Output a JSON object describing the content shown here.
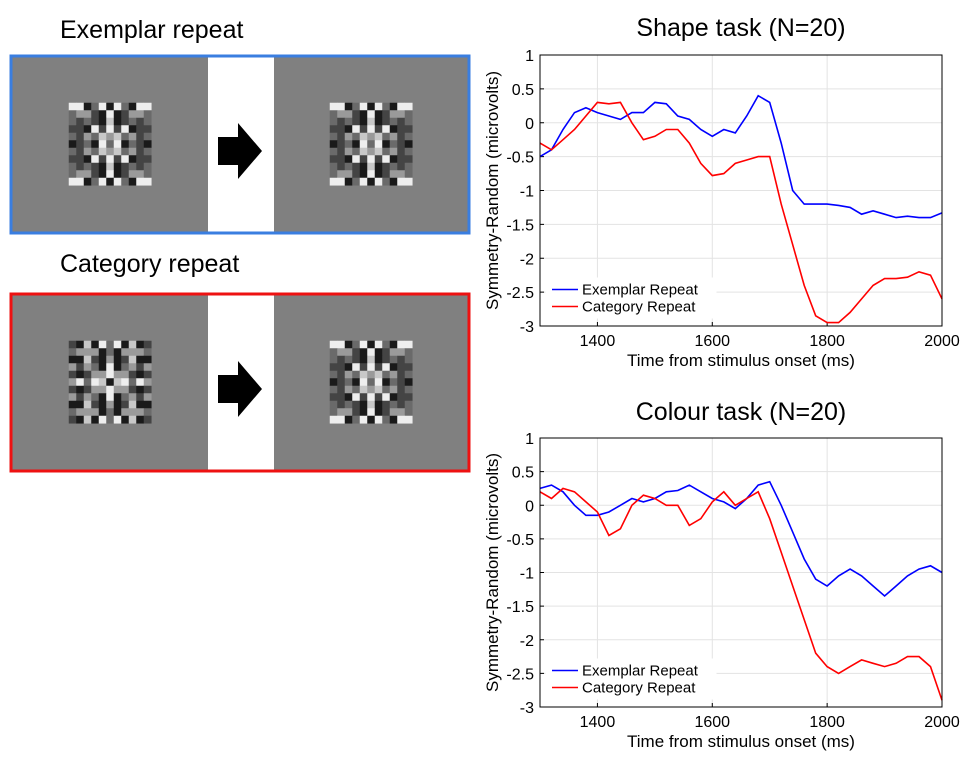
{
  "panels": [
    {
      "label": "Exemplar repeat"
    },
    {
      "label": "Category repeat"
    }
  ],
  "chart_data": [
    {
      "type": "line",
      "title": "Shape task (N=20)",
      "x_label": "Time from stimulus onset (ms)",
      "y_label": "Symmetry-Random (microvolts)",
      "x": [
        1300,
        1320,
        1340,
        1360,
        1380,
        1400,
        1420,
        1440,
        1460,
        1480,
        1500,
        1520,
        1540,
        1560,
        1580,
        1600,
        1620,
        1640,
        1660,
        1680,
        1700,
        1720,
        1740,
        1760,
        1780,
        1800,
        1820,
        1840,
        1860,
        1880,
        1900,
        1920,
        1940,
        1960,
        1980,
        2000
      ],
      "series": [
        {
          "name": "Exemplar Repeat",
          "color": "#0000ff",
          "values": [
            -0.5,
            -0.4,
            -0.1,
            0.15,
            0.22,
            0.15,
            0.1,
            0.05,
            0.15,
            0.15,
            0.3,
            0.28,
            0.1,
            0.05,
            -0.1,
            -0.2,
            -0.1,
            -0.15,
            0.1,
            0.4,
            0.3,
            -0.3,
            -1.0,
            -1.2,
            -1.2,
            -1.2,
            -1.22,
            -1.25,
            -1.35,
            -1.3,
            -1.35,
            -1.4,
            -1.38,
            -1.4,
            -1.4,
            -1.33
          ]
        },
        {
          "name": "Category Repeat",
          "color": "#ff0000",
          "values": [
            -0.3,
            -0.4,
            -0.25,
            -0.1,
            0.1,
            0.3,
            0.28,
            0.3,
            0.0,
            -0.25,
            -0.2,
            -0.1,
            -0.1,
            -0.3,
            -0.6,
            -0.78,
            -0.75,
            -0.6,
            -0.55,
            -0.5,
            -0.5,
            -1.2,
            -1.8,
            -2.4,
            -2.85,
            -2.95,
            -2.95,
            -2.8,
            -2.6,
            -2.4,
            -2.3,
            -2.3,
            -2.28,
            -2.2,
            -2.25,
            -2.6
          ]
        }
      ],
      "xlim": [
        1300,
        2000
      ],
      "xticks": [
        1400,
        1600,
        1800,
        2000
      ],
      "ylim": [
        -3,
        1
      ],
      "yticks": [
        -3,
        -2.5,
        -2,
        -1.5,
        -1,
        -0.5,
        0,
        0.5,
        1
      ],
      "grid": true,
      "legend": "lower left"
    },
    {
      "type": "line",
      "title": "Colour task (N=20)",
      "x_label": "Time from stimulus onset (ms)",
      "y_label": "Symmetry-Random (microvolts)",
      "x": [
        1300,
        1320,
        1340,
        1360,
        1380,
        1400,
        1420,
        1440,
        1460,
        1480,
        1500,
        1520,
        1540,
        1560,
        1580,
        1600,
        1620,
        1640,
        1660,
        1680,
        1700,
        1720,
        1740,
        1760,
        1780,
        1800,
        1820,
        1840,
        1860,
        1880,
        1900,
        1920,
        1940,
        1960,
        1980,
        2000
      ],
      "series": [
        {
          "name": "Exemplar Repeat",
          "color": "#0000ff",
          "values": [
            0.25,
            0.3,
            0.2,
            0.0,
            -0.15,
            -0.15,
            -0.1,
            0.0,
            0.1,
            0.05,
            0.1,
            0.2,
            0.22,
            0.3,
            0.2,
            0.1,
            0.05,
            -0.05,
            0.1,
            0.3,
            0.35,
            0.0,
            -0.4,
            -0.8,
            -1.1,
            -1.2,
            -1.05,
            -0.95,
            -1.05,
            -1.2,
            -1.35,
            -1.2,
            -1.05,
            -0.95,
            -0.9,
            -1.0
          ]
        },
        {
          "name": "Category Repeat",
          "color": "#ff0000",
          "values": [
            0.2,
            0.1,
            0.25,
            0.2,
            0.05,
            -0.1,
            -0.45,
            -0.35,
            0.0,
            0.15,
            0.1,
            0.0,
            0.0,
            -0.3,
            -0.2,
            0.05,
            0.2,
            0.0,
            0.1,
            0.2,
            -0.2,
            -0.7,
            -1.2,
            -1.7,
            -2.2,
            -2.4,
            -2.5,
            -2.4,
            -2.3,
            -2.35,
            -2.4,
            -2.35,
            -2.25,
            -2.25,
            -2.4,
            -2.9
          ]
        }
      ],
      "xlim": [
        1300,
        2000
      ],
      "xticks": [
        1400,
        1600,
        1800,
        2000
      ],
      "ylim": [
        -3,
        1
      ],
      "yticks": [
        -3,
        -2.5,
        -2,
        -1.5,
        -1,
        -0.5,
        0,
        0.5,
        1
      ],
      "grid": true,
      "legend": "lower left"
    }
  ]
}
